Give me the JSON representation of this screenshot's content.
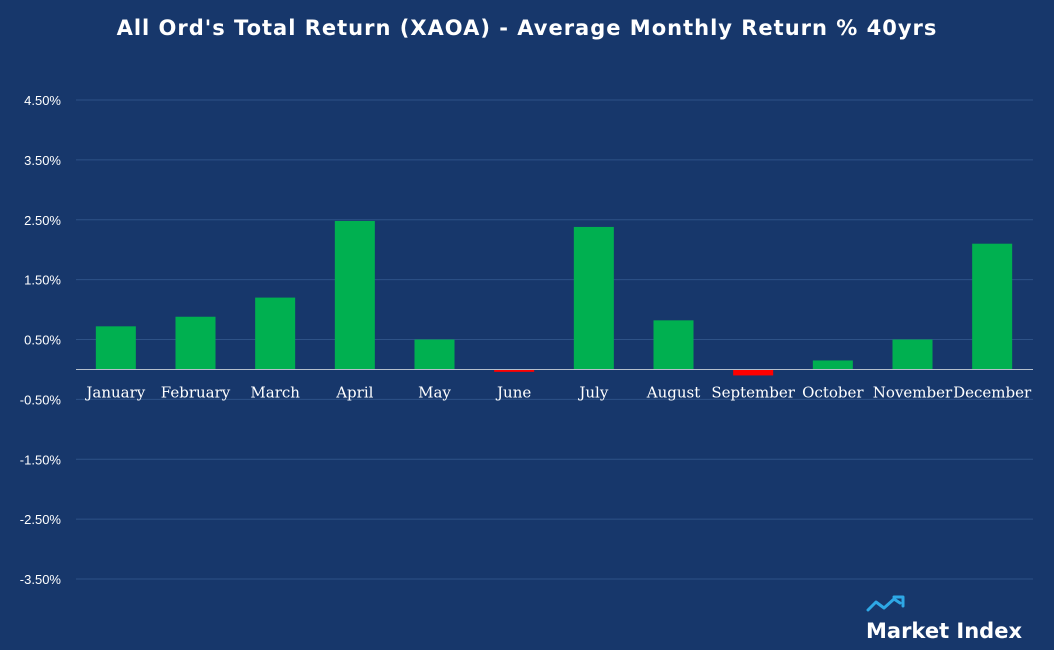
{
  "chart_data": {
    "type": "bar",
    "title": "All Ord's Total Return (XAOA) - Average Monthly Return % 40yrs",
    "xlabel": "",
    "ylabel": "",
    "categories": [
      "January",
      "February",
      "March",
      "April",
      "May",
      "June",
      "July",
      "August",
      "September",
      "October",
      "November",
      "December"
    ],
    "values": [
      0.72,
      0.88,
      1.2,
      2.48,
      0.5,
      -0.04,
      2.38,
      0.82,
      -0.1,
      0.15,
      0.5,
      2.1
    ],
    "ylim": [
      -4.5,
      4.5
    ],
    "yticks": [
      4.5,
      3.5,
      2.5,
      1.5,
      0.5,
      -0.5,
      -1.5,
      -2.5,
      -3.5
    ],
    "ytick_labels": [
      "4.50%",
      "3.50%",
      "2.50%",
      "1.50%",
      "0.50%",
      "-0.50%",
      "-1.50%",
      "-2.50%",
      "-3.50%"
    ],
    "grid": true,
    "legend": "none",
    "colors": {
      "positive": "#00b050",
      "negative": "#ff0000",
      "background": "#17376b",
      "grid": "#2e5287"
    }
  },
  "brand": {
    "name": "Market Index",
    "logo_icon": "trend-arrow-icon",
    "logo_color": "#2ea8e6"
  }
}
